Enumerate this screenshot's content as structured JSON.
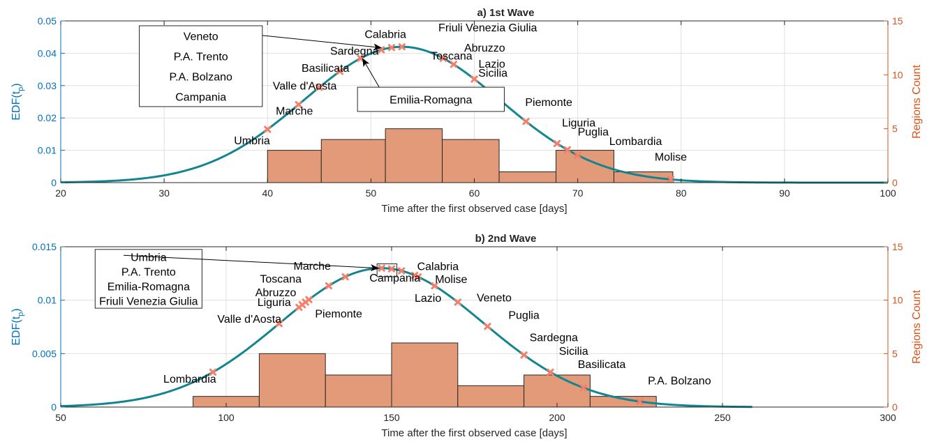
{
  "colors": {
    "curve": "#138590",
    "marker": "#F4806B",
    "bar_fill": "#E39A78",
    "bar_edge": "#262626",
    "left_axis": "#0072BD",
    "right_axis": "#D95319"
  },
  "chart_data": [
    {
      "type": "line",
      "title": "a) 1st Wave",
      "xlabel": "Time after the first observed case [days]",
      "ylabel_left": {
        "main": "EDF(t",
        "sub": "p",
        "close": ")"
      },
      "ylabel_right": "Regions Count",
      "xlim": [
        20,
        100
      ],
      "xticks": [
        20,
        30,
        40,
        50,
        60,
        70,
        80,
        90,
        100
      ],
      "xtick_labels": [
        "20",
        "30",
        "40",
        "50",
        "60",
        "70",
        "80",
        "90",
        "100"
      ],
      "ylim_left": [
        0,
        0.05
      ],
      "yticks_left": [
        0,
        0.01,
        0.02,
        0.03,
        0.04,
        0.05
      ],
      "ytick_labels_left": [
        "0",
        "0.01",
        "0.02",
        "0.03",
        "0.04",
        "0.05"
      ],
      "ylim_right": [
        0,
        15
      ],
      "yticks_right": [
        0,
        5,
        10,
        15
      ],
      "ytick_labels_right": [
        "0",
        "5",
        "10",
        "15"
      ],
      "grid": true,
      "curve": {
        "kind": "normal",
        "mean": 53,
        "sigma": 9.5,
        "x_start": 20,
        "x_end": 100
      },
      "histogram": {
        "edges": [
          40,
          45.2,
          51.4,
          56.9,
          62.4,
          67.9,
          73.5,
          79.2
        ],
        "counts": [
          3,
          4,
          5,
          4,
          1,
          3,
          1
        ]
      },
      "markers": [
        40,
        43,
        45,
        47,
        49,
        51,
        52,
        53,
        57,
        58,
        60,
        65,
        68,
        69,
        70,
        79
      ],
      "labels": [
        {
          "text": "Umbria",
          "x": 38.5,
          "y": 0.0118
        },
        {
          "text": "Marche",
          "x": 42.6,
          "y": 0.021
        },
        {
          "text": "Valle d'Aosta",
          "x": 43.6,
          "y": 0.0288
        },
        {
          "text": "Basilicata",
          "x": 45.6,
          "y": 0.0343
        },
        {
          "text": "Sardegna",
          "x": 48.4,
          "y": 0.0395
        },
        {
          "text": "Calabria",
          "x": 51.4,
          "y": 0.0447
        },
        {
          "text": "Friuli Venezia Giulia",
          "x": 61.3,
          "y": 0.0468
        },
        {
          "text": "Abruzzo",
          "x": 61.0,
          "y": 0.0405
        },
        {
          "text": "Toscana",
          "x": 57.8,
          "y": 0.038
        },
        {
          "text": "Lazio",
          "x": 61.7,
          "y": 0.0356
        },
        {
          "text": "Sicilia",
          "x": 61.8,
          "y": 0.0328
        },
        {
          "text": "Piemonte",
          "x": 67.2,
          "y": 0.0237
        },
        {
          "text": "Liguria",
          "x": 70.1,
          "y": 0.0173
        },
        {
          "text": "Puglia",
          "x": 71.5,
          "y": 0.0145
        },
        {
          "text": "Lombardia",
          "x": 75.6,
          "y": 0.0116
        },
        {
          "text": "Molise",
          "x": 79.0,
          "y": 0.0068
        }
      ],
      "boxes": [
        {
          "lines": [
            "Veneto",
            "P.A. Trento",
            "P.A. Bolzano",
            "Campania"
          ],
          "x0": 27.6,
          "x1": 39.5,
          "y0": 0.0235,
          "y1": 0.0485,
          "arrow_from": [
            39.5,
            0.0455
          ],
          "arrow_to": [
            51.0,
            0.0417
          ]
        },
        {
          "lines": [
            "Emilia-Romagna"
          ],
          "x0": 48.7,
          "x1": 62.9,
          "y0": 0.022,
          "y1": 0.0295,
          "arrow_from": [
            50.8,
            0.0295
          ],
          "arrow_to": [
            49.2,
            0.0383
          ]
        }
      ]
    },
    {
      "type": "line",
      "title": "b) 2nd Wave",
      "xlabel": "Time after the first observed case [days]",
      "ylabel_left": {
        "main": "EDF(t",
        "sub": "p",
        "close": ")"
      },
      "ylabel_right": "Regions Count",
      "xlim": [
        50,
        300
      ],
      "xticks": [
        50,
        100,
        150,
        200,
        250,
        300
      ],
      "xtick_labels": [
        "50",
        "100",
        "150",
        "200",
        "250",
        "300"
      ],
      "ylim_left": [
        0,
        0.015
      ],
      "yticks_left": [
        0,
        0.005,
        0.01,
        0.015
      ],
      "ytick_labels_left": [
        "0",
        "0.005",
        "0.01",
        "0.015"
      ],
      "ylim_right": [
        0,
        15
      ],
      "yticks_right": [
        0,
        5,
        10,
        15
      ],
      "ytick_labels_right": [
        "0",
        "5",
        "10",
        "15"
      ],
      "grid": true,
      "curve": {
        "kind": "normal",
        "mean": 147,
        "sigma": 30.7,
        "x_start": 50,
        "x_end": 259
      },
      "histogram": {
        "edges": [
          90,
          110,
          130,
          150,
          170,
          190,
          210,
          230
        ],
        "counts": [
          1,
          5,
          3,
          6,
          2,
          3,
          1
        ]
      },
      "markers": [
        96,
        116,
        122,
        123,
        124,
        125,
        131,
        136,
        147,
        150,
        153,
        157,
        158,
        163,
        170,
        179,
        190,
        198,
        208,
        225
      ],
      "labels": [
        {
          "text": "Lombardia",
          "x": 89.0,
          "y": 0.00227
        },
        {
          "text": "Valle d'Aosta",
          "x": 107.0,
          "y": 0.0079
        },
        {
          "text": "Liguria",
          "x": 114.5,
          "y": 0.00945
        },
        {
          "text": "Piemonte",
          "x": 134.0,
          "y": 0.00838
        },
        {
          "text": "Abruzzo",
          "x": 115.0,
          "y": 0.01038
        },
        {
          "text": "Toscana",
          "x": 116.5,
          "y": 0.01165
        },
        {
          "text": "Marche",
          "x": 126.0,
          "y": 0.01285
        },
        {
          "text": "Campania",
          "x": 151.0,
          "y": 0.01175
        },
        {
          "text": "Calabria",
          "x": 164.0,
          "y": 0.0128
        },
        {
          "text": "Molise",
          "x": 168.0,
          "y": 0.0116
        },
        {
          "text": "Lazio",
          "x": 161.0,
          "y": 0.00985
        },
        {
          "text": "Veneto",
          "x": 181.0,
          "y": 0.00988
        },
        {
          "text": "Puglia",
          "x": 190.0,
          "y": 0.00825
        },
        {
          "text": "Sardegna",
          "x": 199.0,
          "y": 0.00615
        },
        {
          "text": "Sicilia",
          "x": 205.0,
          "y": 0.0049
        },
        {
          "text": "Basilicata",
          "x": 213.5,
          "y": 0.00365
        },
        {
          "text": "P.A. Bolzano",
          "x": 237.0,
          "y": 0.00212
        }
      ],
      "boxes": [
        {
          "lines": [
            "Umbria",
            "P.A. Trento",
            "Emilia-Romagna",
            "Friuli Venezia Giulia"
          ],
          "x0": 60.4,
          "x1": 92.7,
          "y0": 0.00925,
          "y1": 0.01475,
          "arrow_from": [
            69.0,
            0.0142
          ],
          "arrow_to": [
            146.0,
            0.013
          ]
        },
        {
          "lines": [],
          "x0": 145.6,
          "x1": 151.6,
          "y0": 0.0122,
          "y1": 0.0134
        }
      ]
    }
  ]
}
